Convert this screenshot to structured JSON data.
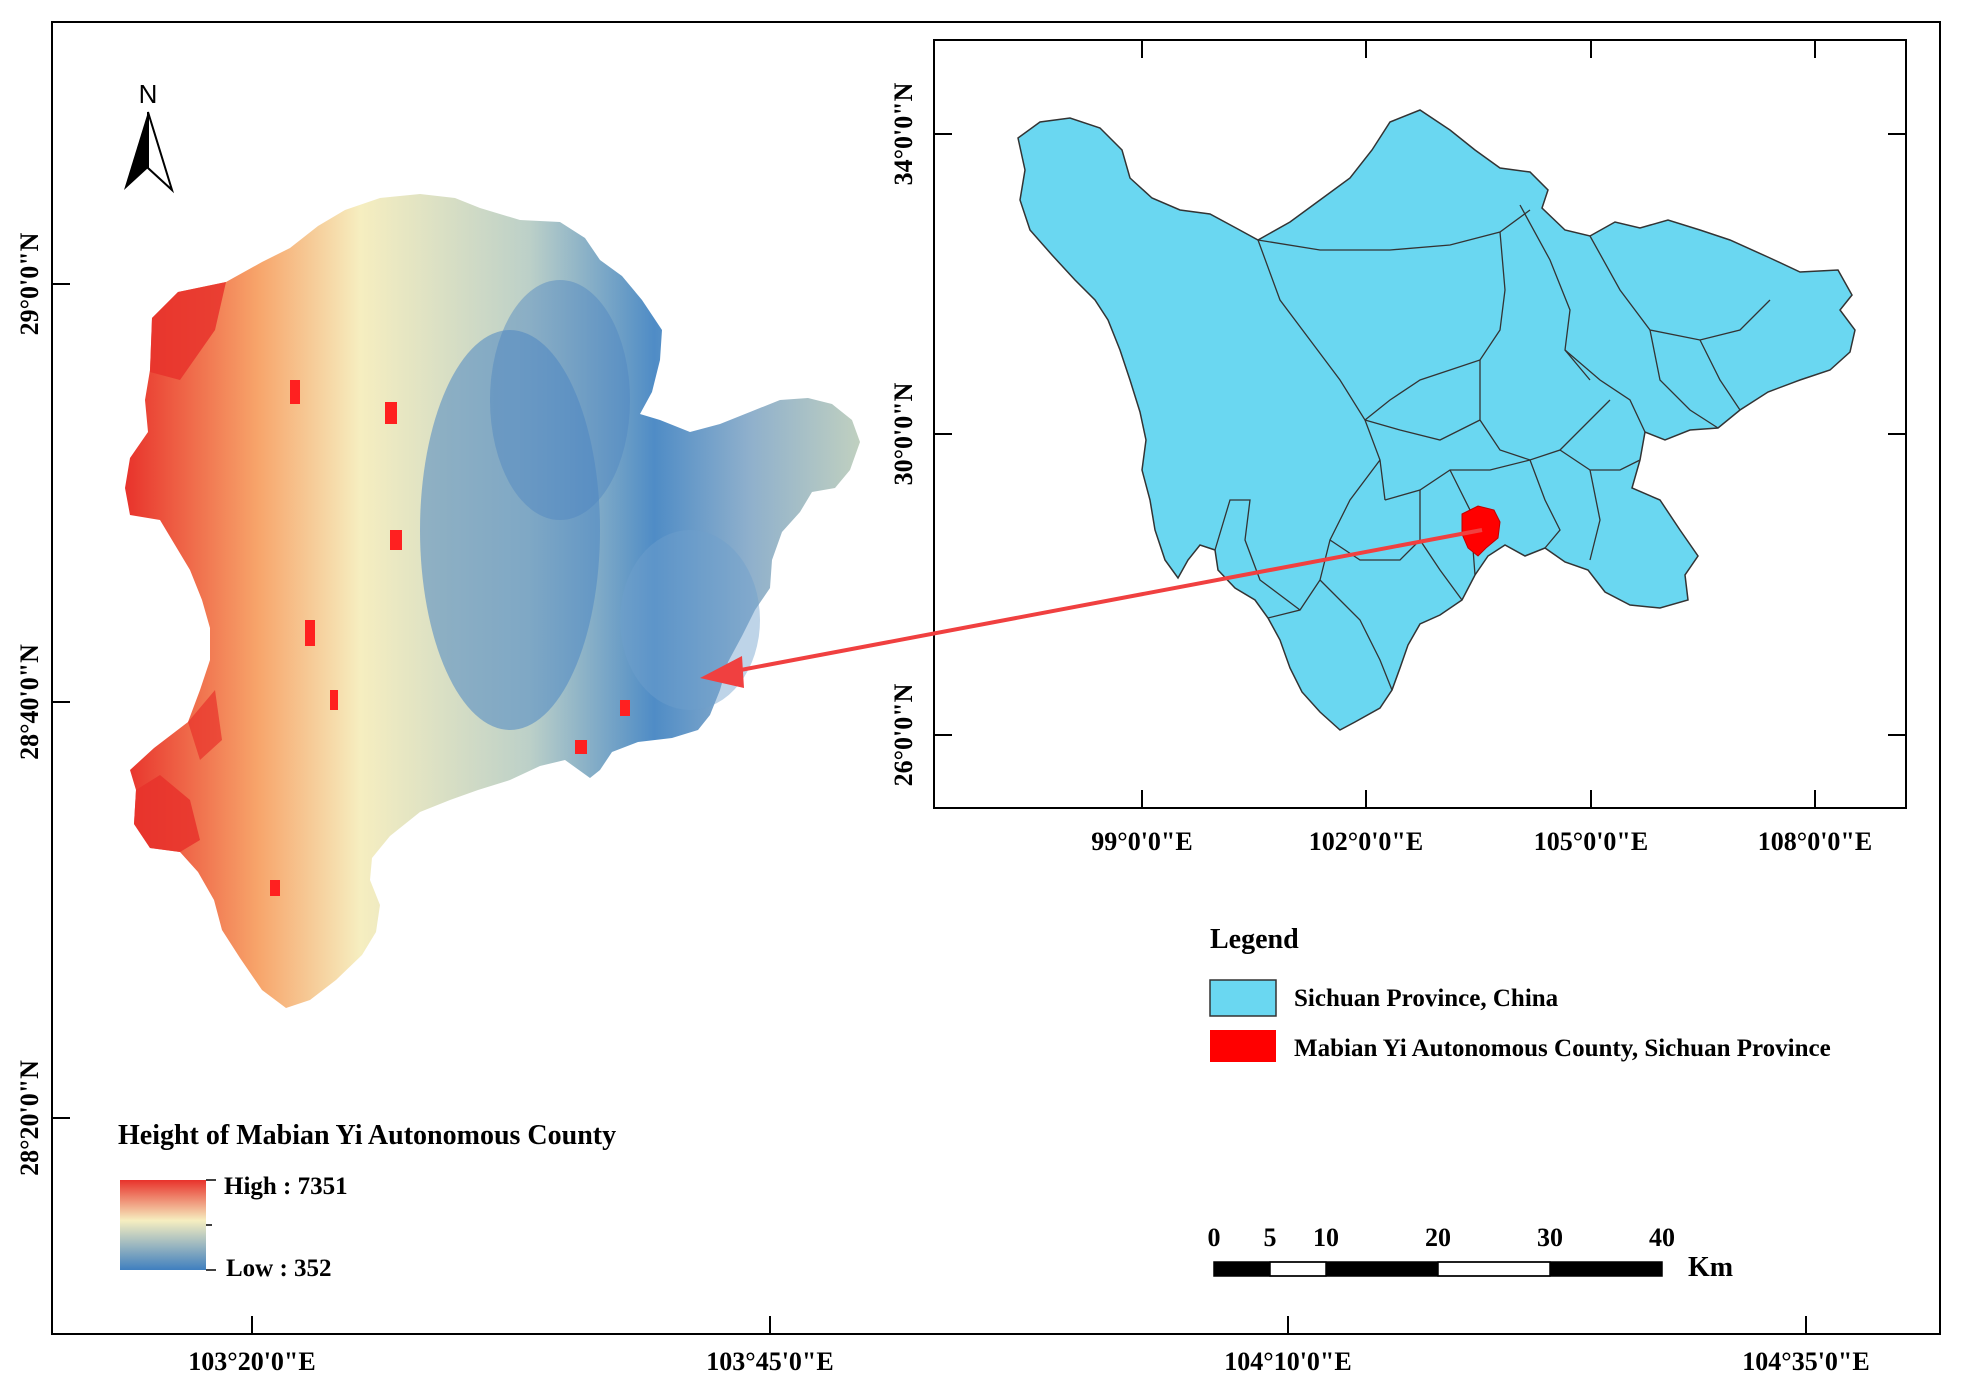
{
  "north_arrow": {
    "label": "N"
  },
  "main_map": {
    "lat_labels": [
      "29°0'0\"N",
      "28°40'0\"N",
      "28°20'0\"N"
    ],
    "lon_labels": [
      "103°20'0\"E",
      "103°45'0\"E",
      "104°10'0\"E",
      "104°35'0\"E"
    ]
  },
  "inset_map": {
    "lat_labels": [
      "34°0'0\"N",
      "30°0'0\"N",
      "26°0'0\"N"
    ],
    "lon_labels": [
      "99°0'0\"E",
      "102°0'0\"E",
      "105°0'0\"E",
      "108°0'0\"E"
    ]
  },
  "legend": {
    "title": "Legend",
    "items": [
      {
        "label": "Sichuan Province, China",
        "color": "#6ad7f1"
      },
      {
        "label": "Mabian Yi Autonomous County, Sichuan Province",
        "color": "#ff0000"
      }
    ]
  },
  "elevation_legend": {
    "title": "Height of Mabian Yi Autonomous County",
    "high_label": "High : 7351",
    "low_label": "Low : 352",
    "colors": [
      "#e8322b",
      "#f6d7a0",
      "#3f7fbf"
    ]
  },
  "scale_bar": {
    "ticks": [
      "0",
      "5",
      "10",
      "20",
      "30",
      "40"
    ],
    "unit": "Km"
  },
  "colors": {
    "province_fill": "#6ad7f1",
    "county_fill": "#ff0000",
    "arrow": "#f04040",
    "high": "#e8322b",
    "mid": "#f6eec0",
    "low": "#3f7fbf"
  }
}
